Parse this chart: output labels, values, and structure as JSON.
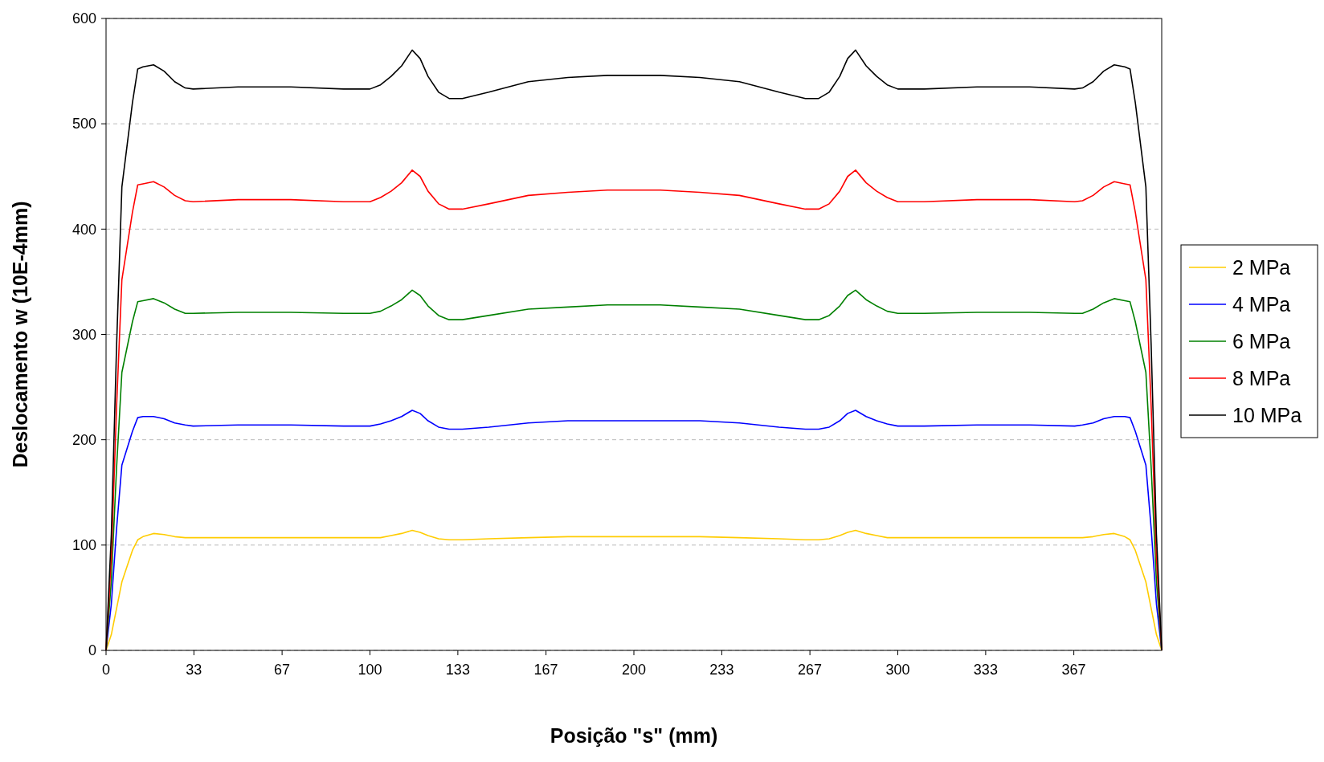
{
  "chart_data": {
    "type": "line",
    "xlabel": "Posição \"s\" (mm)",
    "ylabel": "Deslocamento w (10E-4mm)",
    "x": [
      0,
      2,
      4,
      6,
      8,
      10,
      12,
      14,
      18,
      22,
      26,
      30,
      33,
      50,
      70,
      90,
      100,
      104,
      108,
      112,
      116,
      119,
      122,
      126,
      130,
      135,
      145,
      160,
      175,
      190,
      200,
      210,
      225,
      240,
      255,
      265,
      270,
      274,
      278,
      281,
      284,
      288,
      292,
      296,
      300,
      310,
      330,
      350,
      367,
      370,
      374,
      378,
      382,
      386,
      388,
      390,
      392,
      394,
      396,
      398,
      400
    ],
    "xlim": [
      0,
      400
    ],
    "xticks": [
      0,
      {
        "value": 33.3,
        "label": "33"
      },
      {
        "value": 66.7,
        "label": "67"
      },
      100,
      {
        "value": 133.3,
        "label": "133"
      },
      {
        "value": 166.7,
        "label": "167"
      },
      200,
      {
        "value": 233.3,
        "label": "233"
      },
      {
        "value": 266.7,
        "label": "267"
      },
      300,
      {
        "value": 333.3,
        "label": "333"
      },
      {
        "value": 366.7,
        "label": "367"
      }
    ],
    "ylim": [
      0,
      600
    ],
    "yticks": [
      0,
      100,
      200,
      300,
      400,
      500,
      600
    ],
    "grid": "y",
    "legend": "right",
    "line_style": "solid",
    "series": [
      {
        "name": "2 MPa",
        "color": "#ffcc00",
        "values": [
          0,
          15,
          40,
          65,
          80,
          95,
          105,
          108,
          111,
          110,
          108,
          107,
          107,
          107,
          107,
          107,
          107,
          107,
          109,
          111,
          114,
          112,
          109,
          106,
          105,
          105,
          106,
          107,
          108,
          108,
          108,
          108,
          108,
          107,
          106,
          105,
          105,
          106,
          109,
          112,
          114,
          111,
          109,
          107,
          107,
          107,
          107,
          107,
          107,
          107,
          108,
          110,
          111,
          108,
          105,
          95,
          80,
          65,
          40,
          15,
          0
        ]
      },
      {
        "name": "4 MPa",
        "color": "#0000ff",
        "values": [
          0,
          44,
          116,
          176,
          192,
          208,
          221,
          222,
          222,
          220,
          216,
          214,
          213,
          214,
          214,
          213,
          213,
          215,
          218,
          222,
          228,
          225,
          218,
          212,
          210,
          210,
          212,
          216,
          218,
          218,
          218,
          218,
          218,
          216,
          212,
          210,
          210,
          212,
          218,
          225,
          228,
          222,
          218,
          215,
          213,
          213,
          214,
          214,
          213,
          214,
          216,
          220,
          222,
          222,
          221,
          208,
          192,
          176,
          116,
          44,
          0
        ]
      },
      {
        "name": "6 MPa",
        "color": "#008000",
        "values": [
          0,
          66,
          174,
          264,
          288,
          312,
          331,
          332,
          334,
          330,
          324,
          320,
          320,
          321,
          321,
          320,
          320,
          322,
          327,
          333,
          342,
          337,
          327,
          318,
          314,
          314,
          318,
          324,
          326,
          328,
          328,
          328,
          326,
          324,
          318,
          314,
          314,
          318,
          327,
          337,
          342,
          333,
          327,
          322,
          320,
          320,
          321,
          321,
          320,
          320,
          324,
          330,
          334,
          332,
          331,
          312,
          288,
          264,
          174,
          66,
          0
        ]
      },
      {
        "name": "8 MPa",
        "color": "#ff0000",
        "values": [
          0,
          88,
          232,
          352,
          384,
          416,
          442,
          443,
          445,
          440,
          432,
          427,
          426,
          428,
          428,
          426,
          426,
          430,
          436,
          444,
          456,
          450,
          436,
          424,
          419,
          419,
          424,
          432,
          435,
          437,
          437,
          437,
          435,
          432,
          424,
          419,
          419,
          424,
          436,
          450,
          456,
          444,
          436,
          430,
          426,
          426,
          428,
          428,
          426,
          427,
          432,
          440,
          445,
          443,
          442,
          416,
          384,
          352,
          232,
          88,
          0
        ]
      },
      {
        "name": "10 MPa",
        "color": "#000000",
        "values": [
          0,
          110,
          290,
          440,
          480,
          520,
          552,
          554,
          556,
          550,
          540,
          534,
          533,
          535,
          535,
          533,
          533,
          537,
          545,
          555,
          570,
          562,
          545,
          530,
          524,
          524,
          530,
          540,
          544,
          546,
          546,
          546,
          544,
          540,
          530,
          524,
          524,
          530,
          545,
          562,
          570,
          555,
          545,
          537,
          533,
          533,
          535,
          535,
          533,
          534,
          540,
          550,
          556,
          554,
          552,
          520,
          480,
          440,
          290,
          110,
          0
        ]
      }
    ]
  }
}
